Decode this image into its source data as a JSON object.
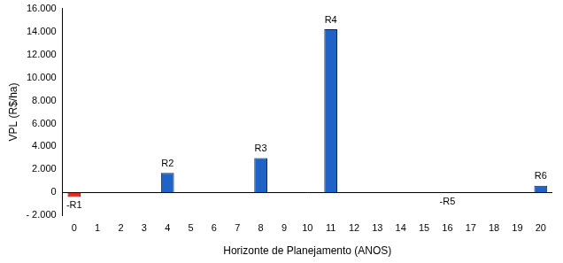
{
  "chart_data": {
    "type": "bar",
    "y_label": "VPL (R$/ha)",
    "x_label": "Horizonte de Planejamento (ANOS)",
    "categories": [
      "0",
      "1",
      "2",
      "3",
      "4",
      "5",
      "6",
      "7",
      "8",
      "9",
      "10",
      "11",
      "12",
      "13",
      "14",
      "15",
      "16",
      "17",
      "18",
      "19",
      "20"
    ],
    "values": [
      -400,
      null,
      null,
      null,
      1700,
      null,
      null,
      null,
      3000,
      null,
      null,
      14200,
      null,
      null,
      null,
      null,
      -50,
      null,
      null,
      null,
      600
    ],
    "colors": [
      "#e8261c",
      null,
      null,
      null,
      "#1f63c6",
      null,
      null,
      null,
      "#1f63c6",
      null,
      null,
      "#1f63c6",
      null,
      null,
      null,
      null,
      "#e8261c",
      null,
      null,
      null,
      "#1f63c6"
    ],
    "annotations": [
      {
        "x": "0",
        "text": "-R1"
      },
      {
        "x": "4",
        "text": "R2"
      },
      {
        "x": "8",
        "text": "R3"
      },
      {
        "x": "11",
        "text": "R4"
      },
      {
        "x": "16",
        "text": "-R5"
      },
      {
        "x": "20",
        "text": "R6"
      }
    ],
    "ylim": [
      -2000,
      16000
    ],
    "yticks": [
      {
        "value": -2000,
        "label": "- 2.000"
      },
      0,
      {
        "value": 2000,
        "label": "2.000"
      },
      {
        "value": 4000,
        "label": "4.000"
      },
      {
        "value": 6000,
        "label": "6.000"
      },
      {
        "value": 8000,
        "label": "8.000"
      },
      {
        "value": 10000,
        "label": "10.000"
      },
      {
        "value": 12000,
        "label": "12.000"
      },
      {
        "value": 14000,
        "label": "14.000"
      },
      {
        "value": 16000,
        "label": "16.000"
      }
    ],
    "grid": false
  }
}
